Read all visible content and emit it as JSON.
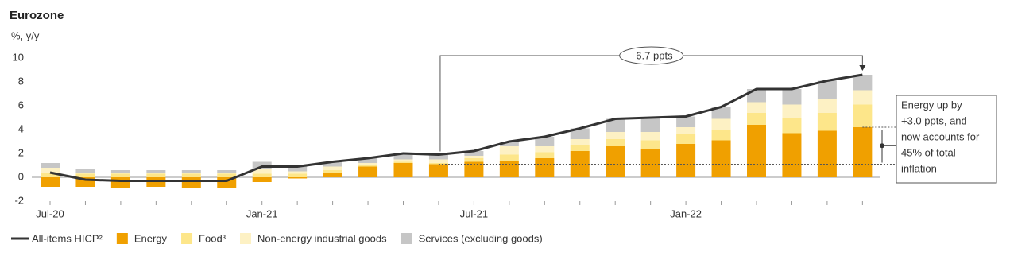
{
  "chart_data": {
    "type": "bar",
    "title": "Eurozone",
    "y_label": "%, y/y",
    "categories": [
      "Jul-20",
      null,
      null,
      null,
      null,
      null,
      "Jan-21",
      null,
      null,
      null,
      null,
      null,
      "Jul-21",
      null,
      null,
      null,
      null,
      null,
      "Jan-22",
      null,
      null,
      null,
      null,
      null
    ],
    "ylim": [
      -2,
      10
    ],
    "yticks": [
      -2,
      0,
      2,
      4,
      6,
      8,
      10
    ],
    "series": [
      {
        "name": "All-items HICP²",
        "type": "line",
        "color": "#333333",
        "values": [
          0.4,
          -0.2,
          -0.3,
          -0.3,
          -0.3,
          -0.3,
          0.9,
          0.9,
          1.3,
          1.6,
          2.0,
          1.9,
          2.2,
          3.0,
          3.4,
          4.1,
          4.9,
          5.0,
          5.1,
          5.9,
          7.4,
          7.4,
          8.1,
          8.6
        ]
      },
      {
        "name": "Energy",
        "color": "#f0a000",
        "values": [
          -0.8,
          -0.8,
          -0.9,
          -0.8,
          -0.9,
          -0.9,
          -0.4,
          -0.1,
          0.4,
          0.9,
          1.2,
          1.1,
          1.3,
          1.4,
          1.6,
          2.2,
          2.6,
          2.4,
          2.8,
          3.1,
          4.4,
          3.7,
          3.9,
          4.2
        ]
      },
      {
        "name": "Food³",
        "color": "#fde68a",
        "values": [
          0.4,
          0.3,
          0.3,
          0.3,
          0.3,
          0.3,
          0.3,
          0.3,
          0.2,
          0.1,
          0.1,
          0.1,
          0.3,
          0.5,
          0.5,
          0.5,
          0.6,
          0.7,
          0.8,
          0.9,
          1.0,
          1.3,
          1.5,
          1.9
        ]
      },
      {
        "name": "Non-energy industrial goods",
        "color": "#fdf1c4",
        "values": [
          0.4,
          0.1,
          0.1,
          0.1,
          0.1,
          0.1,
          0.4,
          0.2,
          0.3,
          0.2,
          0.2,
          0.3,
          0.2,
          0.7,
          0.5,
          0.5,
          0.6,
          0.7,
          0.6,
          0.9,
          0.9,
          1.1,
          1.2,
          1.2
        ]
      },
      {
        "name": "Services (excluding goods)",
        "color": "#c6c6c6",
        "values": [
          0.4,
          0.3,
          0.2,
          0.2,
          0.2,
          0.2,
          0.6,
          0.5,
          0.4,
          0.4,
          0.5,
          0.4,
          0.4,
          0.4,
          0.8,
          0.9,
          1.1,
          1.2,
          0.9,
          1.0,
          1.1,
          1.3,
          1.5,
          1.3
        ]
      }
    ],
    "annotations": {
      "bracket": "+6.7 ppts",
      "note": [
        "Energy up by",
        "+3.0 ppts, and",
        "now accounts for",
        "45% of total",
        "inflation"
      ]
    }
  }
}
